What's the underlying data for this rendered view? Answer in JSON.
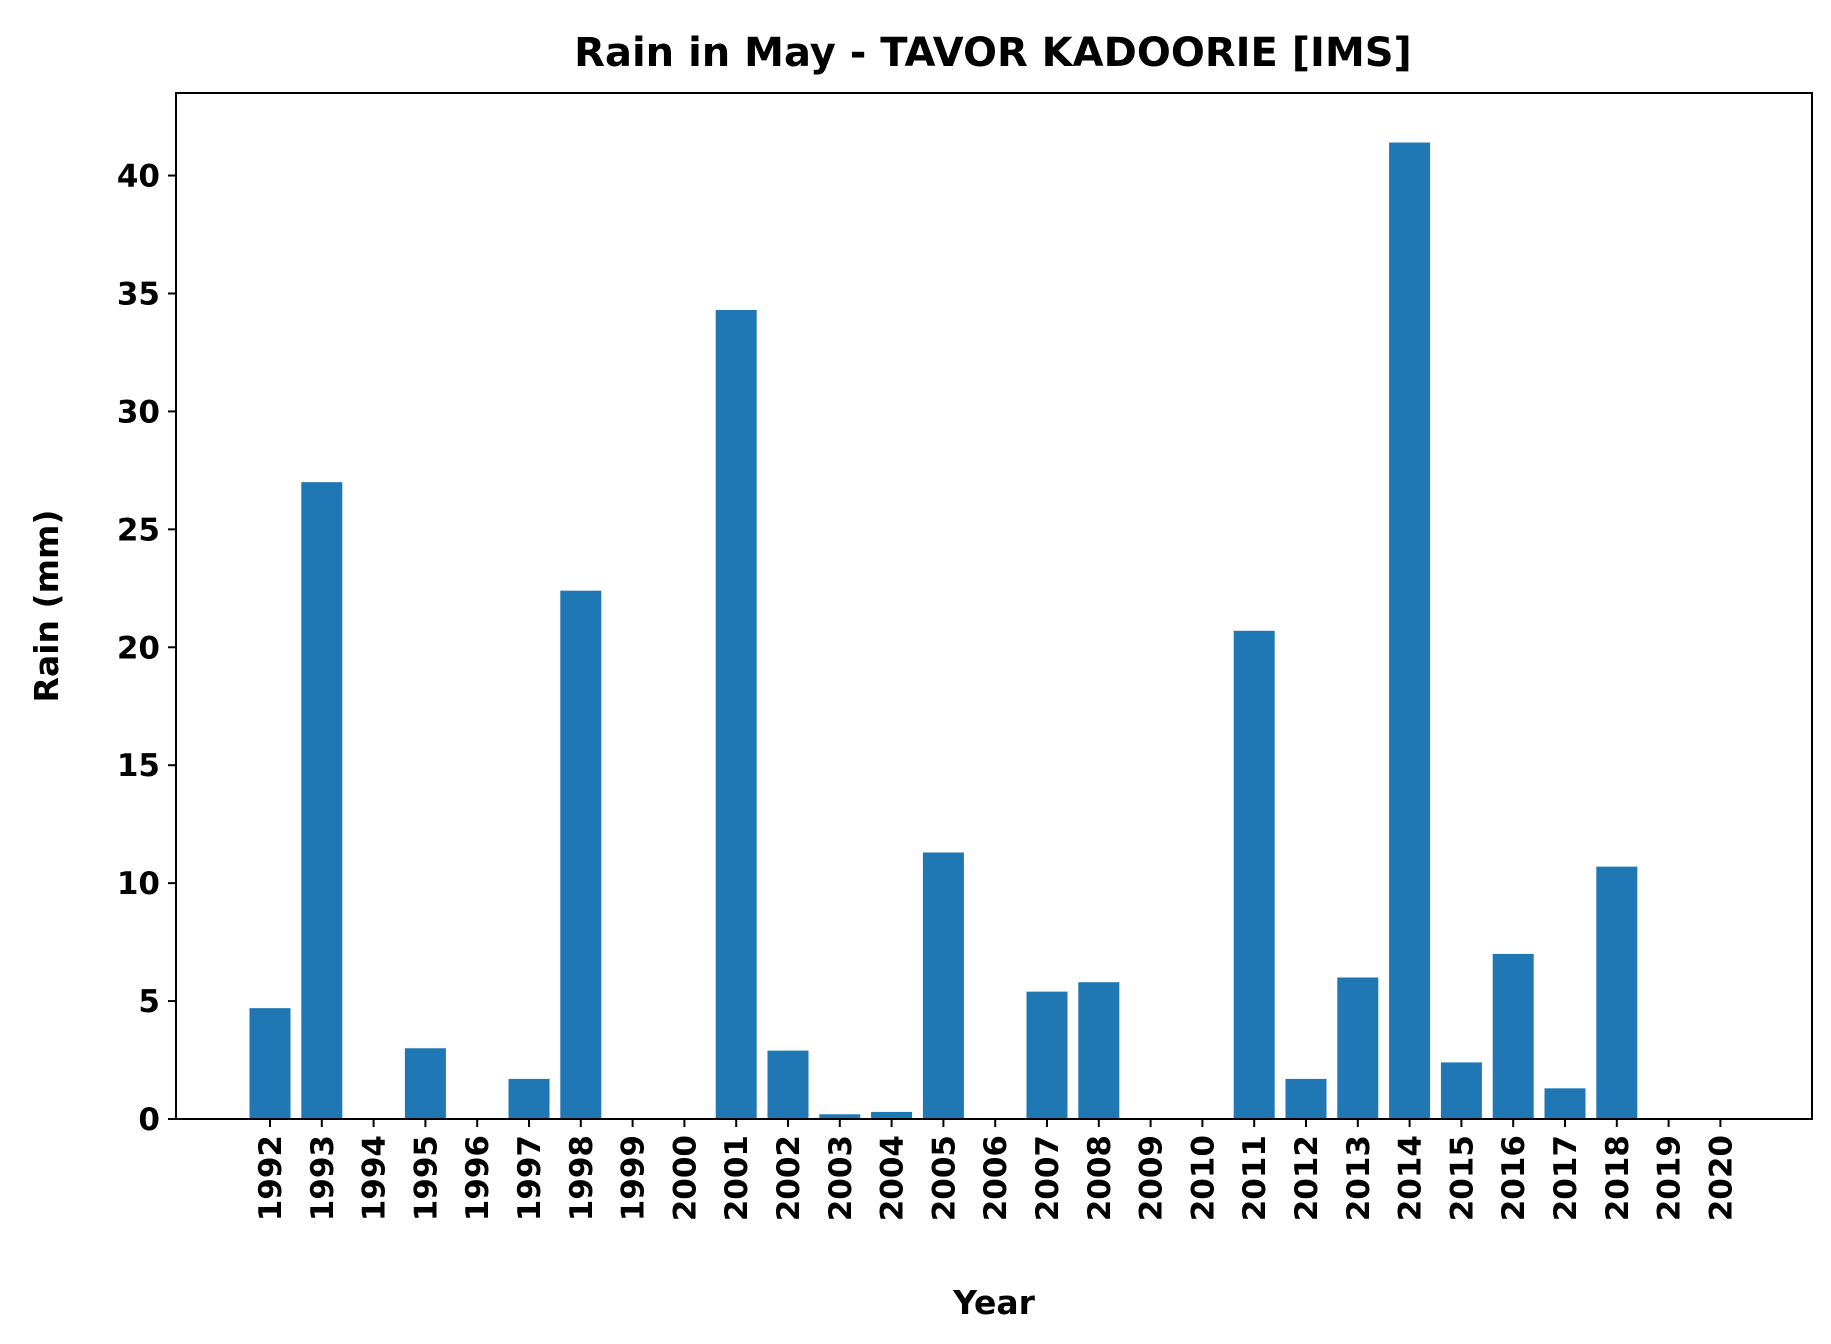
{
  "chart_data": {
    "type": "bar",
    "title": "Rain in May - TAVOR KADOORIE [IMS]",
    "xlabel": "Year",
    "ylabel": "Rain (mm)",
    "ylim": [
      0,
      43.5
    ],
    "yticks": [
      0,
      5,
      10,
      15,
      20,
      25,
      30,
      35,
      40
    ],
    "categories": [
      "1992",
      "1993",
      "1994",
      "1995",
      "1996",
      "1997",
      "1998",
      "1999",
      "2000",
      "2001",
      "2002",
      "2003",
      "2004",
      "2005",
      "2006",
      "2007",
      "2008",
      "2009",
      "2010",
      "2011",
      "2012",
      "2013",
      "2014",
      "2015",
      "2016",
      "2017",
      "2018",
      "2019",
      "2020"
    ],
    "values": [
      4.7,
      27.0,
      0,
      3.0,
      0,
      1.7,
      22.4,
      0,
      0,
      34.3,
      2.9,
      0.2,
      0.3,
      11.3,
      0,
      5.4,
      5.8,
      0,
      0,
      20.7,
      1.7,
      6.0,
      41.4,
      2.4,
      7.0,
      1.3,
      10.7,
      0,
      0
    ],
    "color": "#1f77b4",
    "grid": false,
    "legend": "none"
  }
}
